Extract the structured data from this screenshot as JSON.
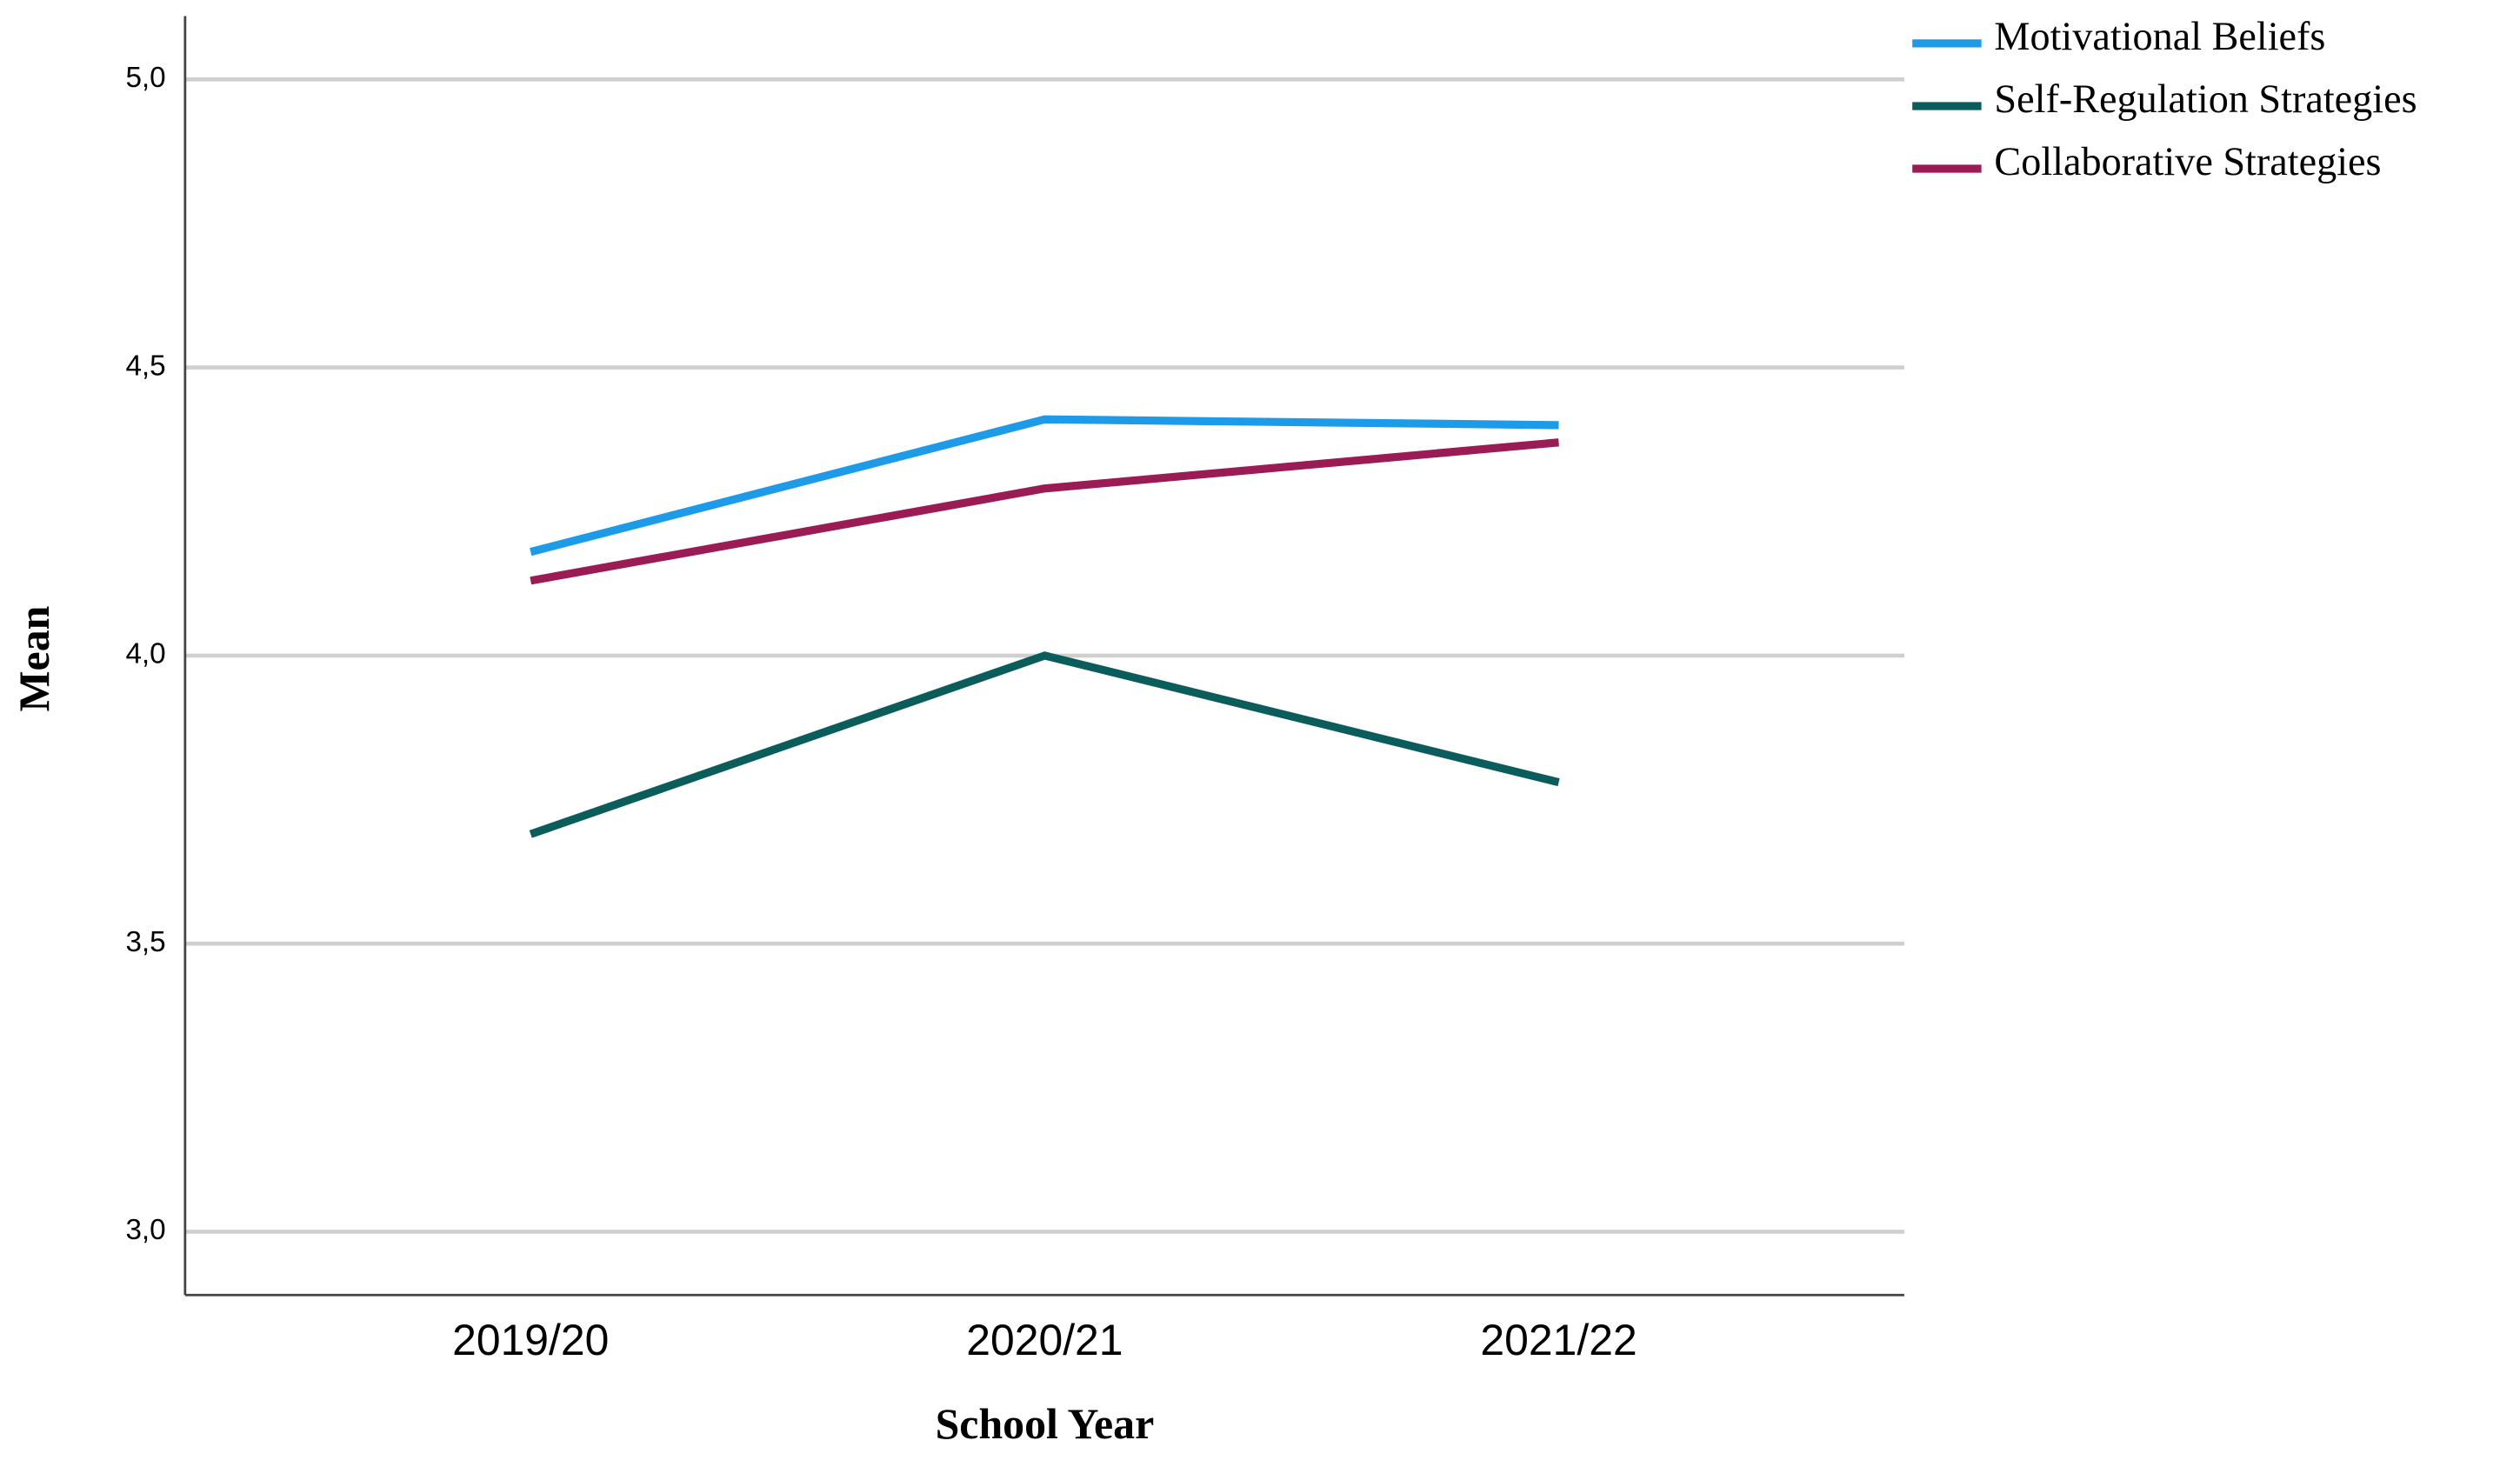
{
  "chart_data": {
    "type": "line",
    "x_label": "School Year",
    "y_label": "Mean",
    "categories": [
      "2019/20",
      "2020/21",
      "2021/22"
    ],
    "series": [
      {
        "name": "Motivational Beliefs",
        "color": "#1e9be8",
        "values": [
          4.18,
          4.41,
          4.4
        ]
      },
      {
        "name": "Self-Regulation Strategies",
        "color": "#0b5d5b",
        "values": [
          3.69,
          4.0,
          3.78
        ]
      },
      {
        "name": "Collaborative Strategies",
        "color": "#9b1b55",
        "values": [
          4.13,
          4.29,
          4.37
        ]
      }
    ],
    "ylim": [
      2.89,
      5.11
    ],
    "yticks": [
      {
        "value": 3.0,
        "label": "3,0"
      },
      {
        "value": 3.5,
        "label": "3,5"
      },
      {
        "value": 4.0,
        "label": "4,0"
      },
      {
        "value": 4.5,
        "label": "4,5"
      },
      {
        "value": 5.0,
        "label": "5,0"
      }
    ],
    "grid": true,
    "legend": "top-right"
  }
}
